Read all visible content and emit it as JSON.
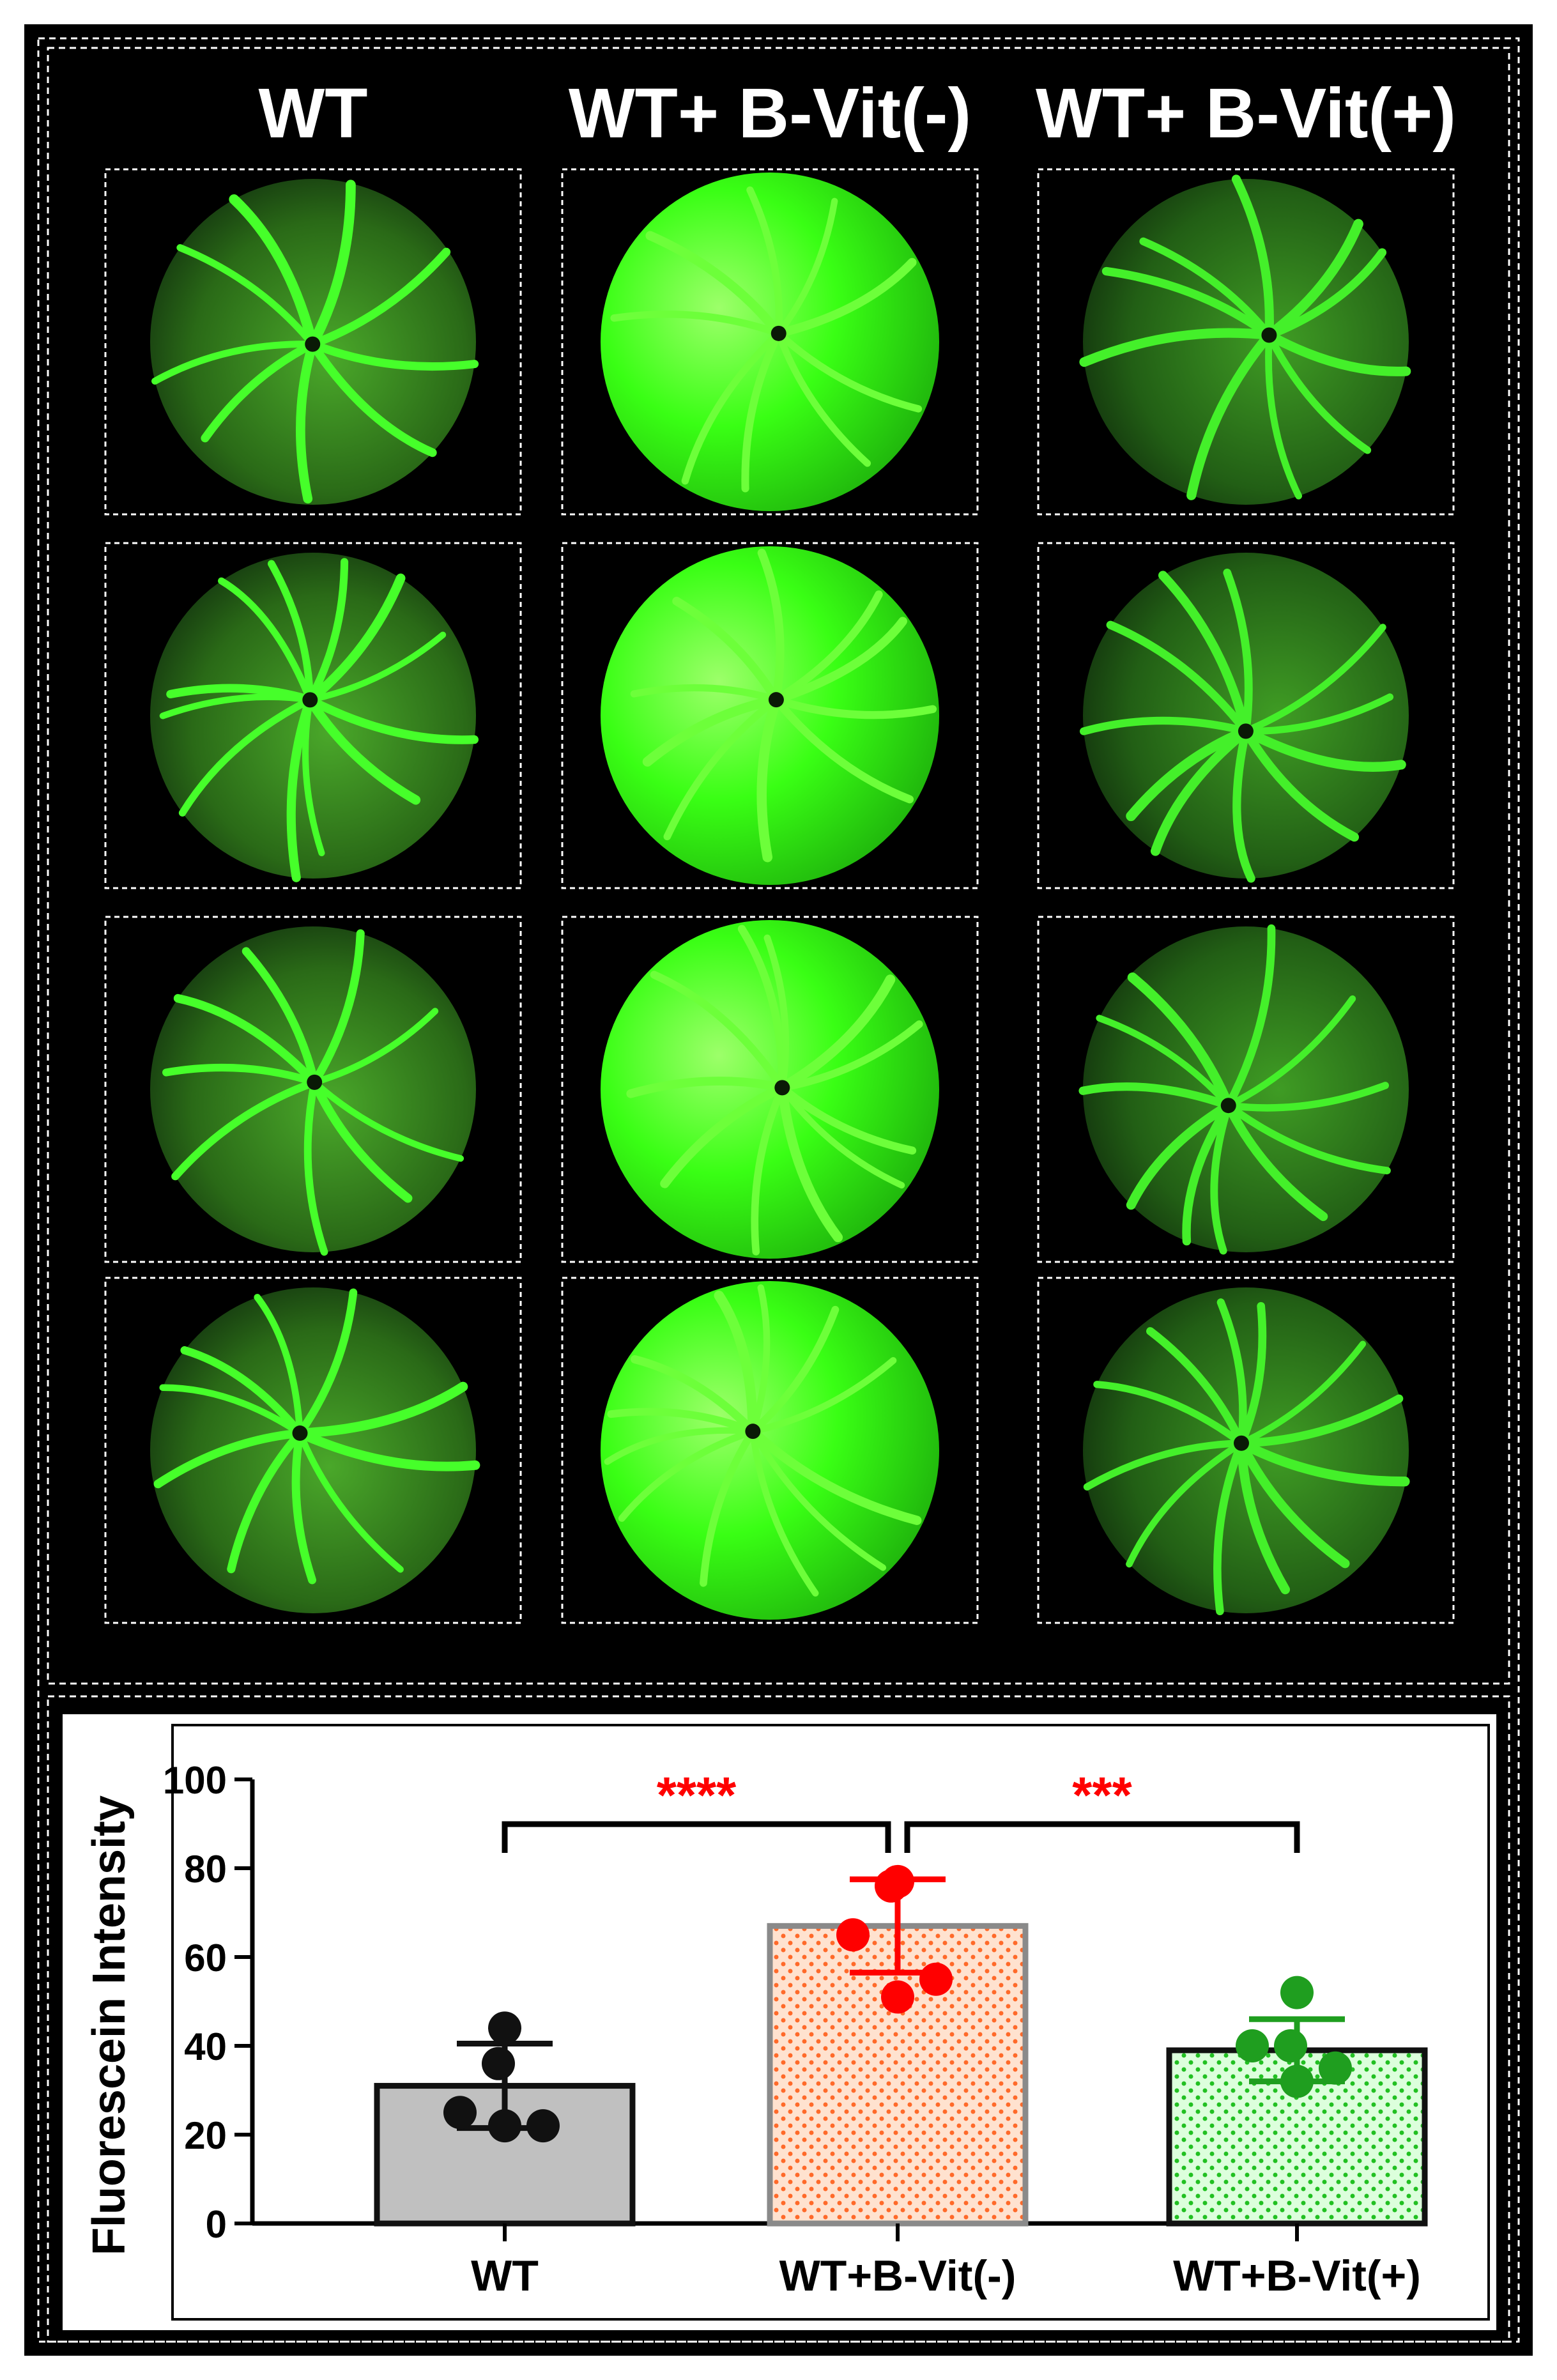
{
  "panel_top": {
    "column_headers": [
      "WT",
      "WT+ B-Vit(-)",
      "WT+ B-Vit(+)"
    ],
    "images": [
      {
        "group": "WT",
        "glow": "#3c8a1e",
        "vessels": "#46ff2a"
      },
      {
        "group": "WT+ B-Vit(-)",
        "glow": "#39ff14",
        "vessels": "#6dff3a"
      },
      {
        "group": "WT+ B-Vit(+)",
        "glow": "#2f7a18",
        "vessels": "#44f02a"
      }
    ]
  },
  "chart_data": {
    "type": "bar",
    "ylabel": "Fluorescein Intensity",
    "ylim": [
      0,
      100
    ],
    "yticks": [
      "0",
      "20",
      "40",
      "60",
      "80",
      "100"
    ],
    "categories": [
      "WT",
      "WT+B-Vit(-)",
      "WT+B-Vit(+)"
    ],
    "values": [
      31,
      67,
      39
    ],
    "sd": [
      9.5,
      10.5,
      7
    ],
    "points": [
      [
        44,
        36,
        25,
        22,
        22
      ],
      [
        77,
        76,
        65,
        55,
        51
      ],
      [
        52,
        40,
        40,
        35,
        32
      ]
    ],
    "bar_fills": [
      "#c0c0c0",
      "#ffdcc6",
      "#d4ffd4"
    ],
    "bar_edges": [
      "#111111",
      "#8a8a8a",
      "#111111"
    ],
    "point_colors": [
      "#111111",
      "#ff0000",
      "#1f9e1f"
    ],
    "significance": [
      {
        "label": "****",
        "from": 0,
        "to": 1,
        "color": "#ff0000"
      },
      {
        "label": "***",
        "from": 1,
        "to": 2,
        "color": "#ff0000"
      }
    ]
  }
}
